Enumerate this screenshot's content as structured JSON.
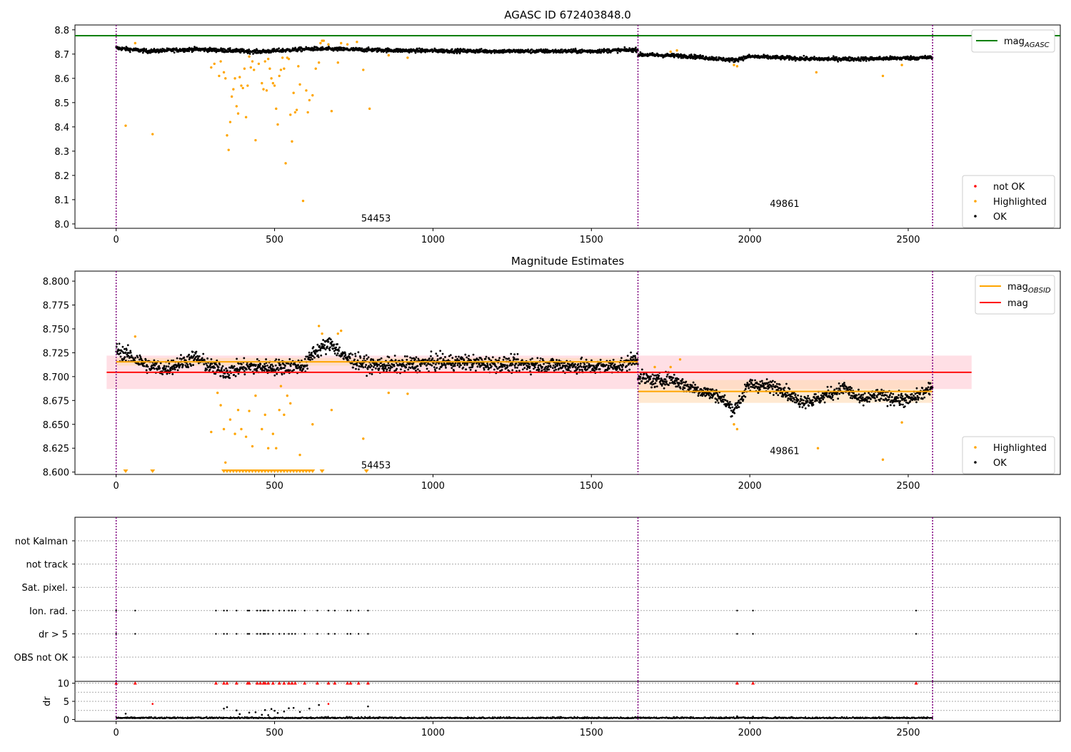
{
  "titles": {
    "top": "AGASC ID 672403848.0",
    "middle": "Magnitude Estimates"
  },
  "colors": {
    "ok": "#000000",
    "highlighted": "#ffa500",
    "not_ok": "#ff0000",
    "agasc_line": "#008000",
    "obs_line": "#ffa500",
    "mean_line": "#ff0000",
    "mean_band": "#ffc0cb",
    "obs_band": "#ffdab3",
    "obs_boundary": "#800080"
  },
  "chart_data": [
    {
      "type": "scatter",
      "name": "top",
      "title": "AGASC ID 672403848.0",
      "xlim": [
        -130,
        2980
      ],
      "ylim": [
        7.982,
        8.82
      ],
      "xticks": [
        0,
        500,
        1000,
        1500,
        2000,
        2500
      ],
      "yticks": [
        8.0,
        8.1,
        8.2,
        8.3,
        8.4,
        8.5,
        8.6,
        8.7,
        8.8
      ],
      "ytick_labels": [
        "8.0",
        "8.1",
        "8.2",
        "8.3",
        "8.4",
        "8.5",
        "8.6",
        "8.7",
        "8.8"
      ],
      "obs_boundaries": [
        0,
        1647,
        2577
      ],
      "obs_labels": [
        {
          "text": "54453",
          "x": 820,
          "y": 8.025
        },
        {
          "text": "49861",
          "x": 2110,
          "y": 8.085
        }
      ],
      "agasc_mag": 8.776,
      "legend_lines": [
        {
          "label": "mag",
          "sub": "AGASC",
          "color": "#008000"
        }
      ],
      "legend_points": [
        {
          "label": "not OK",
          "color": "#ff0000"
        },
        {
          "label": "Highlighted",
          "color": "#ffa500"
        },
        {
          "label": "OK",
          "color": "#000000"
        }
      ],
      "ok_segments": [
        {
          "x0": 0,
          "x1": 1647,
          "knots": [
            [
              0,
              8.725
            ],
            [
              100,
              8.712
            ],
            [
              250,
              8.72
            ],
            [
              450,
              8.71
            ],
            [
              620,
              8.722
            ],
            [
              700,
              8.72
            ],
            [
              900,
              8.715
            ],
            [
              1200,
              8.712
            ],
            [
              1500,
              8.712
            ],
            [
              1647,
              8.718
            ]
          ],
          "noise": 0.008
        },
        {
          "x0": 1647,
          "x1": 2577,
          "knots": [
            [
              1647,
              8.698
            ],
            [
              1800,
              8.692
            ],
            [
              1950,
              8.675
            ],
            [
              2000,
              8.69
            ],
            [
              2200,
              8.68
            ],
            [
              2350,
              8.68
            ],
            [
              2577,
              8.686
            ]
          ],
          "noise": 0.008
        }
      ],
      "highlighted": [
        [
          30,
          8.405
        ],
        [
          60,
          8.745
        ],
        [
          115,
          8.37
        ],
        [
          300,
          8.645
        ],
        [
          310,
          8.66
        ],
        [
          325,
          8.61
        ],
        [
          330,
          8.67
        ],
        [
          340,
          8.625
        ],
        [
          345,
          8.6
        ],
        [
          350,
          8.365
        ],
        [
          355,
          8.305
        ],
        [
          360,
          8.42
        ],
        [
          365,
          8.525
        ],
        [
          370,
          8.555
        ],
        [
          375,
          8.6
        ],
        [
          380,
          8.485
        ],
        [
          385,
          8.455
        ],
        [
          390,
          8.605
        ],
        [
          395,
          8.57
        ],
        [
          400,
          8.56
        ],
        [
          405,
          8.64
        ],
        [
          410,
          8.44
        ],
        [
          415,
          8.57
        ],
        [
          420,
          8.69
        ],
        [
          425,
          8.645
        ],
        [
          430,
          8.67
        ],
        [
          435,
          8.635
        ],
        [
          440,
          8.345
        ],
        [
          450,
          8.66
        ],
        [
          460,
          8.58
        ],
        [
          465,
          8.555
        ],
        [
          470,
          8.67
        ],
        [
          475,
          8.55
        ],
        [
          480,
          8.68
        ],
        [
          485,
          8.64
        ],
        [
          490,
          8.6
        ],
        [
          495,
          8.58
        ],
        [
          500,
          8.57
        ],
        [
          505,
          8.475
        ],
        [
          510,
          8.41
        ],
        [
          515,
          8.61
        ],
        [
          520,
          8.635
        ],
        [
          525,
          8.685
        ],
        [
          530,
          8.64
        ],
        [
          535,
          8.25
        ],
        [
          540,
          8.685
        ],
        [
          545,
          8.68
        ],
        [
          550,
          8.45
        ],
        [
          555,
          8.34
        ],
        [
          560,
          8.54
        ],
        [
          565,
          8.46
        ],
        [
          570,
          8.47
        ],
        [
          575,
          8.65
        ],
        [
          580,
          8.575
        ],
        [
          590,
          8.095
        ],
        [
          600,
          8.55
        ],
        [
          605,
          8.46
        ],
        [
          610,
          8.51
        ],
        [
          620,
          8.53
        ],
        [
          630,
          8.64
        ],
        [
          640,
          8.665
        ],
        [
          645,
          8.745
        ],
        [
          650,
          8.755
        ],
        [
          655,
          8.755
        ],
        [
          670,
          8.74
        ],
        [
          680,
          8.465
        ],
        [
          700,
          8.665
        ],
        [
          710,
          8.745
        ],
        [
          730,
          8.74
        ],
        [
          760,
          8.75
        ],
        [
          780,
          8.635
        ],
        [
          800,
          8.475
        ],
        [
          860,
          8.695
        ],
        [
          920,
          8.685
        ],
        [
          1750,
          8.71
        ],
        [
          1770,
          8.715
        ],
        [
          1950,
          8.655
        ],
        [
          1960,
          8.65
        ],
        [
          2210,
          8.625
        ],
        [
          2420,
          8.61
        ],
        [
          2480,
          8.655
        ]
      ],
      "not_ok": []
    },
    {
      "type": "scatter",
      "name": "middle",
      "title": "Magnitude Estimates",
      "xlim": [
        -130,
        2980
      ],
      "ylim": [
        8.5975,
        8.8105
      ],
      "xticks": [
        0,
        500,
        1000,
        1500,
        2000,
        2500
      ],
      "yticks": [
        8.6,
        8.625,
        8.65,
        8.675,
        8.7,
        8.725,
        8.75,
        8.775,
        8.8
      ],
      "ytick_labels": [
        "8.600",
        "8.625",
        "8.650",
        "8.675",
        "8.700",
        "8.725",
        "8.750",
        "8.775",
        "8.800"
      ],
      "obs_boundaries": [
        0,
        1647,
        2577
      ],
      "obs_labels": [
        {
          "text": "54453",
          "x": 820,
          "y": 8.6075
        },
        {
          "text": "49861",
          "x": 2110,
          "y": 8.6225
        }
      ],
      "mag_mean": 8.7045,
      "mag_band": [
        8.687,
        8.722
      ],
      "mag_band_xrange": [
        -30,
        2700
      ],
      "obs_mags": [
        {
          "x0": 0,
          "x1": 1647,
          "mag": 8.7155,
          "band": [
            8.7115,
            8.7195
          ]
        },
        {
          "x0": 1647,
          "x1": 2577,
          "mag": 8.6845,
          "band": [
            8.6725,
            8.6965
          ]
        }
      ],
      "legend_lines": [
        {
          "label": "mag",
          "sub": "OBSID",
          "color": "#ffa500"
        },
        {
          "label": "mag",
          "sub": "",
          "color": "#ff0000"
        }
      ],
      "legend_points": [
        {
          "label": "Highlighted",
          "color": "#ffa500"
        },
        {
          "label": "OK",
          "color": "#000000"
        }
      ],
      "ok_segments": [
        {
          "x0": 0,
          "x1": 1647,
          "knots": [
            [
              0,
              8.728
            ],
            [
              50,
              8.72
            ],
            [
              100,
              8.712
            ],
            [
              150,
              8.708
            ],
            [
              250,
              8.72
            ],
            [
              300,
              8.71
            ],
            [
              350,
              8.705
            ],
            [
              400,
              8.71
            ],
            [
              500,
              8.71
            ],
            [
              600,
              8.712
            ],
            [
              620,
              8.725
            ],
            [
              680,
              8.735
            ],
            [
              720,
              8.72
            ],
            [
              800,
              8.712
            ],
            [
              900,
              8.712
            ],
            [
              1000,
              8.715
            ],
            [
              1100,
              8.715
            ],
            [
              1200,
              8.713
            ],
            [
              1300,
              8.713
            ],
            [
              1400,
              8.712
            ],
            [
              1500,
              8.71
            ],
            [
              1600,
              8.712
            ],
            [
              1647,
              8.72
            ]
          ],
          "noise": 0.008
        },
        {
          "x0": 1647,
          "x1": 2577,
          "knots": [
            [
              1647,
              8.7
            ],
            [
              1700,
              8.695
            ],
            [
              1750,
              8.698
            ],
            [
              1800,
              8.69
            ],
            [
              1850,
              8.685
            ],
            [
              1900,
              8.68
            ],
            [
              1950,
              8.665
            ],
            [
              2000,
              8.692
            ],
            [
              2100,
              8.688
            ],
            [
              2150,
              8.675
            ],
            [
              2200,
              8.675
            ],
            [
              2300,
              8.688
            ],
            [
              2350,
              8.675
            ],
            [
              2400,
              8.68
            ],
            [
              2500,
              8.675
            ],
            [
              2577,
              8.688
            ]
          ],
          "noise": 0.007
        }
      ],
      "highlighted": [
        [
          60,
          8.742
        ],
        [
          300,
          8.642
        ],
        [
          320,
          8.683
        ],
        [
          330,
          8.67
        ],
        [
          340,
          8.645
        ],
        [
          345,
          8.61
        ],
        [
          360,
          8.655
        ],
        [
          375,
          8.64
        ],
        [
          385,
          8.665
        ],
        [
          395,
          8.645
        ],
        [
          410,
          8.637
        ],
        [
          420,
          8.664
        ],
        [
          430,
          8.627
        ],
        [
          440,
          8.68
        ],
        [
          460,
          8.645
        ],
        [
          470,
          8.66
        ],
        [
          480,
          8.625
        ],
        [
          495,
          8.64
        ],
        [
          505,
          8.625
        ],
        [
          515,
          8.665
        ],
        [
          520,
          8.69
        ],
        [
          530,
          8.66
        ],
        [
          540,
          8.68
        ],
        [
          550,
          8.672
        ],
        [
          580,
          8.618
        ],
        [
          620,
          8.65
        ],
        [
          640,
          8.753
        ],
        [
          650,
          8.745
        ],
        [
          680,
          8.665
        ],
        [
          700,
          8.745
        ],
        [
          710,
          8.748
        ],
        [
          780,
          8.635
        ],
        [
          860,
          8.683
        ],
        [
          920,
          8.682
        ],
        [
          1700,
          8.71
        ],
        [
          1750,
          8.71
        ],
        [
          1780,
          8.718
        ],
        [
          1950,
          8.65
        ],
        [
          1960,
          8.645
        ],
        [
          2215,
          8.625
        ],
        [
          2420,
          8.613
        ],
        [
          2480,
          8.652
        ]
      ],
      "clipped_low": [
        30,
        115,
        340,
        350,
        360,
        370,
        380,
        390,
        400,
        410,
        420,
        430,
        440,
        450,
        460,
        470,
        480,
        490,
        500,
        510,
        520,
        530,
        540,
        550,
        560,
        570,
        580,
        590,
        600,
        610,
        620,
        650,
        790
      ]
    },
    {
      "type": "scatter",
      "name": "flags",
      "xlim": [
        -130,
        2980
      ],
      "categories": [
        "not Kalman",
        "not track",
        "Sat. pixel.",
        "Ion. rad.",
        "dr > 5",
        "OBS not OK"
      ],
      "flagged_x": [
        0,
        60,
        315,
        340,
        350,
        380,
        415,
        420,
        445,
        455,
        465,
        470,
        480,
        495,
        515,
        530,
        545,
        555,
        565,
        595,
        635,
        670,
        690,
        730,
        740,
        765,
        795,
        1960,
        2010,
        2525
      ],
      "flag_rows": {
        "not Kalman": [],
        "not track": [],
        "Sat. pixel.": [],
        "Ion. rad.": "flagged_x",
        "dr > 5": "flagged_x",
        "OBS not OK": []
      },
      "obs_boundaries": [
        0,
        1647,
        2577
      ]
    },
    {
      "type": "scatter",
      "name": "dr",
      "ylabel": "dr",
      "xlim": [
        -130,
        2980
      ],
      "ylim": [
        -0.5,
        10.5
      ],
      "xticks": [
        0,
        500,
        1000,
        1500,
        2000,
        2500
      ],
      "yticks": [
        0,
        5,
        10
      ],
      "ytick_labels": [
        "0",
        "5",
        "10"
      ],
      "obs_boundaries": [
        0,
        1647,
        2577
      ],
      "dr_base": 0.3,
      "dr_points": [
        [
          30,
          1.6
        ],
        [
          115,
          4.3
        ],
        [
          340,
          3.0
        ],
        [
          350,
          3.4
        ],
        [
          380,
          2.5
        ],
        [
          390,
          1.5
        ],
        [
          420,
          1.9
        ],
        [
          440,
          2.0
        ],
        [
          460,
          1.3
        ],
        [
          470,
          2.6
        ],
        [
          480,
          1.2
        ],
        [
          490,
          2.9
        ],
        [
          500,
          2.4
        ],
        [
          510,
          1.8
        ],
        [
          530,
          2.2
        ],
        [
          545,
          3.1
        ],
        [
          560,
          3.2
        ],
        [
          580,
          2.1
        ],
        [
          610,
          3.0
        ],
        [
          640,
          4.0
        ],
        [
          670,
          4.3
        ],
        [
          795,
          3.6
        ],
        [
          1960,
          0.9
        ],
        [
          2010,
          0.8
        ]
      ],
      "clipped_x": [
        0,
        60,
        315,
        340,
        350,
        380,
        415,
        420,
        445,
        455,
        465,
        470,
        480,
        495,
        515,
        530,
        545,
        555,
        565,
        595,
        635,
        670,
        690,
        730,
        740,
        765,
        795,
        1960,
        2010,
        2525
      ]
    }
  ]
}
